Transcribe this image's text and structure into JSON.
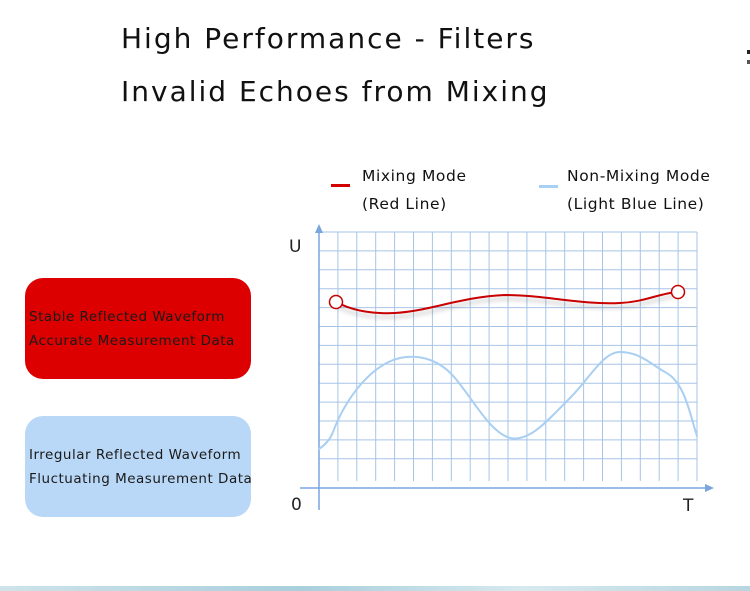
{
  "title": {
    "line1": "High Performance - Filters",
    "line2": "Invalid Echoes from Mixing"
  },
  "legend": [
    {
      "line1": "Mixing Mode",
      "line2": "(Red Line)",
      "color": "#d40000"
    },
    {
      "line1": "Non-Mixing Mode",
      "line2": "(Light Blue Line)",
      "color": "#a8d0f5"
    }
  ],
  "boxes": [
    {
      "line1": "Stable Reflected Waveform",
      "line2": "Accurate Measurement Data",
      "color": "#dc0000"
    },
    {
      "line1": "Irregular Reflected Waveform",
      "line2": "Fluctuating Measurement Data",
      "color": "#b9d8f7"
    }
  ],
  "axes": {
    "y_label": "U",
    "x_label": "T",
    "origin_label": "0"
  },
  "colors": {
    "grid": "#a7c4e6",
    "axis": "#7aa6dd",
    "red_curve": "#c80000",
    "blue_curve": "#a9cff2"
  }
}
